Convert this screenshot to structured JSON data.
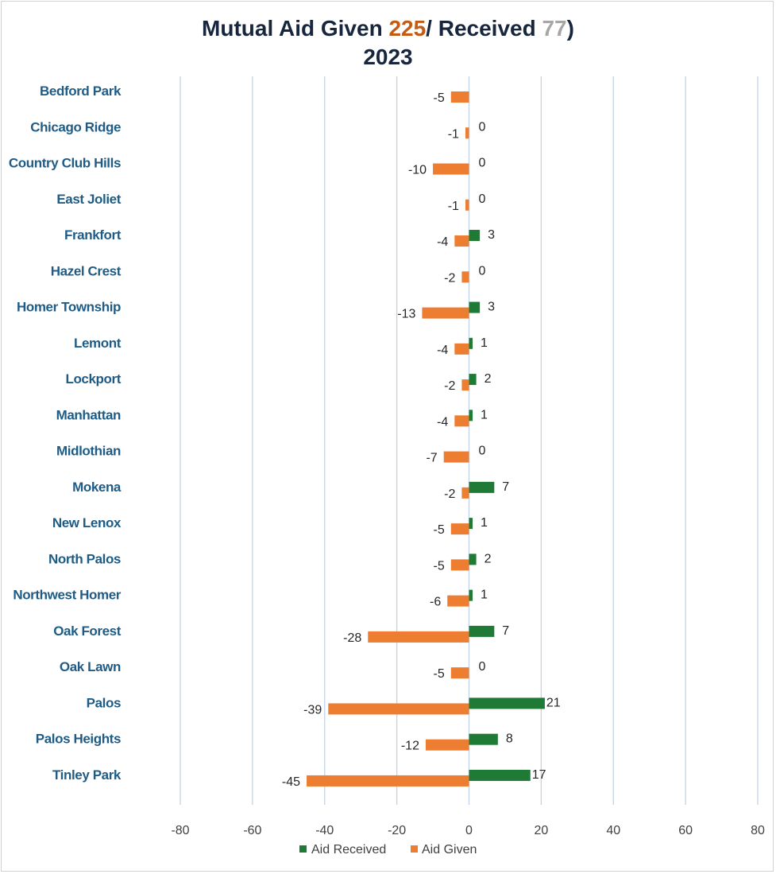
{
  "title": {
    "prefix": "Mutual Aid Given ",
    "given_total": "225",
    "middle": "/ Received ",
    "received_total": "77",
    "suffix": ")",
    "year": "2023"
  },
  "colors": {
    "aid_received": "#1e7a34",
    "aid_given": "#ed7d31",
    "gridline": "#c5d3e6",
    "category_label": "#1f5c85",
    "title": "#17253d",
    "given_total": "#c55a11",
    "received_total": "#a6a6a6"
  },
  "chart_data": {
    "type": "bar",
    "orientation": "horizontal",
    "categories": [
      "Bedford Park",
      "Chicago Ridge",
      "Country Club Hills",
      "East Joliet",
      "Frankfort",
      "Hazel Crest",
      "Homer Township",
      "Lemont",
      "Lockport",
      "Manhattan",
      "Midlothian",
      "Mokena",
      "New Lenox",
      "North Palos",
      "Northwest Homer",
      "Oak Forest",
      "Oak Lawn",
      "Palos",
      "Palos Heights",
      "Tinley Park"
    ],
    "series": [
      {
        "name": "Aid Received",
        "values": [
          null,
          0,
          0,
          0,
          3,
          0,
          3,
          1,
          2,
          1,
          0,
          7,
          1,
          2,
          1,
          7,
          0,
          21,
          8,
          17
        ]
      },
      {
        "name": "Aid Given",
        "values": [
          -5,
          -1,
          -10,
          -1,
          -4,
          -2,
          -13,
          -4,
          -2,
          -4,
          -7,
          -2,
          -5,
          -5,
          -6,
          -28,
          -5,
          -39,
          -12,
          -45
        ]
      }
    ],
    "xlim": [
      -80,
      80
    ],
    "xticks": [
      -80,
      -60,
      -40,
      -20,
      0,
      20,
      40,
      60,
      80
    ],
    "grid": true,
    "legend": "bottom"
  }
}
